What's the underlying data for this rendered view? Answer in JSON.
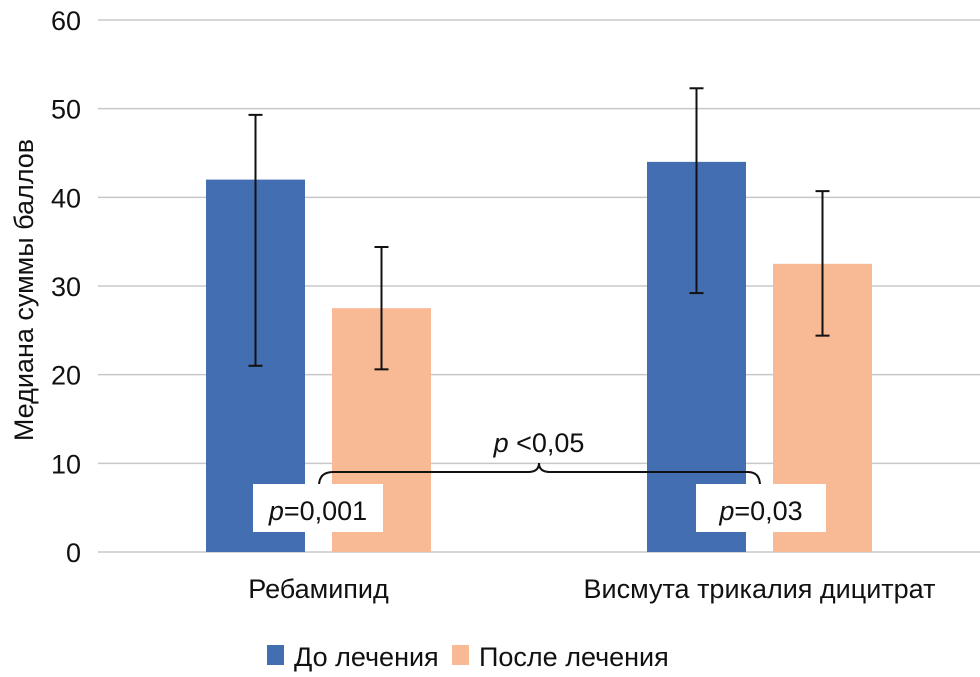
{
  "chart_data": {
    "type": "bar",
    "title": "",
    "xlabel": "",
    "ylabel": "Медиана суммы баллов",
    "ylim": [
      0,
      60
    ],
    "yticks": [
      0,
      10,
      20,
      30,
      40,
      50,
      60
    ],
    "grid": true,
    "categories": [
      "Ребамипид",
      "Висмута трикалия дицитрат"
    ],
    "series": [
      {
        "name": "До лечения",
        "color": "#446EB2",
        "values": [
          42,
          44
        ],
        "error_low": [
          21,
          29.2
        ],
        "error_high": [
          49.3,
          52.3
        ]
      },
      {
        "name": "После лечения",
        "color": "#F8B995",
        "values": [
          27.5,
          32.5
        ],
        "error_low": [
          20.6,
          24.4
        ],
        "error_high": [
          34.4,
          40.7
        ]
      }
    ],
    "annotations": {
      "group_p": [
        {
          "italic": "p",
          "text": "=0,001",
          "category": 0
        },
        {
          "italic": "p",
          "text": "=0,03",
          "category": 1
        }
      ],
      "between": {
        "italic": "p",
        "text": " <0,05"
      }
    },
    "legend": "bottom"
  }
}
